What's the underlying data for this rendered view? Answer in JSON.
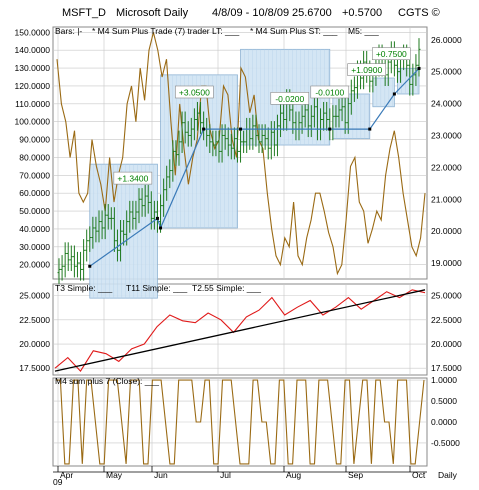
{
  "header": {
    "symbol": "MSFT_D",
    "name": "Microsoft Daily",
    "range": "4/8/09 - 10/8/09",
    "last": "25.6700",
    "change": "+0.5700",
    "copyright": "CGTS ©"
  },
  "colors": {
    "background": "#ffffff",
    "plot_bg": "#ffffff",
    "grid": "#c8c8c8",
    "candle": "#1f7a1f",
    "box_fill": "#cfe3f3",
    "box_stroke": "#8fb3d3",
    "trade_line": "#3a7ab8",
    "callout_text": "#008000",
    "olive": "#9a6a14",
    "red": "#e01a1a",
    "black": "#000000"
  },
  "chart_data": [
    {
      "type": "candlestick",
      "panel": "price",
      "legend": [
        "Bars: |-",
        "* M4 Sum Plus Trade (7) trader LT: ___",
        "* M4 Sum Plus ST: ___",
        "M5: ___"
      ],
      "ylim_left": [
        12,
        153
      ],
      "ylim_right": [
        18.5,
        26.4
      ],
      "left_ticks": [
        "150.0000",
        "140.0000",
        "130.0000",
        "120.0000",
        "110.0000",
        "100.0000",
        "90.0000",
        "80.0000",
        "70.0000",
        "60.0000",
        "50.0000",
        "40.0000",
        "30.0000",
        "20.0000"
      ],
      "right_ticks": [
        "26.0000",
        "25.0000",
        "24.0000",
        "23.0000",
        "22.0000",
        "21.0000",
        "20.0000",
        "19.0000"
      ],
      "close_prices": [
        18.8,
        18.9,
        19.3,
        19.1,
        19.2,
        18.9,
        19.0,
        18.8,
        19.4,
        19.7,
        19.8,
        20.1,
        20.0,
        20.3,
        20.1,
        20.5,
        20.4,
        20.4,
        19.7,
        19.4,
        20.0,
        19.9,
        20.3,
        20.6,
        20.4,
        20.6,
        21.0,
        20.8,
        21.1,
        20.9,
        20.4,
        20.6,
        20.3,
        20.8,
        21.3,
        21.7,
        21.9,
        22.5,
        22.4,
        22.8,
        23.4,
        23.1,
        23.0,
        23.2,
        23.5,
        23.7,
        23.4,
        23.2,
        23.0,
        22.8,
        22.7,
        22.8,
        22.5,
        23.0,
        22.9,
        22.7,
        22.6,
        22.9,
        22.5,
        22.8,
        22.8,
        23.2,
        22.9,
        23.3,
        23.0,
        22.8,
        23.0,
        22.9,
        22.6,
        23.1,
        22.7,
        23.3,
        23.7,
        23.5,
        24.1,
        23.8,
        23.4,
        23.2,
        23.4,
        23.6,
        23.8,
        23.3,
        23.6,
        23.9,
        23.2,
        23.5,
        23.7,
        23.5,
        23.2,
        23.6,
        23.6,
        23.8,
        23.9,
        23.4,
        24.0,
        24.4,
        24.5,
        25.0,
        24.8,
        25.3,
        25.0,
        24.7,
        24.9,
        25.2,
        25.5,
        25.2,
        24.9,
        25.3,
        25.6,
        25.2,
        25.0,
        25.4,
        25.5,
        25.2,
        24.6,
        24.9,
        25.2,
        25.7
      ],
      "trades": [
        {
          "label": "+1.3400",
          "entry": 18.9,
          "exit": 20.4
        },
        {
          "label": "+3.0500",
          "entry": 20.1,
          "exit": 23.2
        },
        {
          "label": "-0.0200",
          "entry": 23.2,
          "exit": 23.2
        },
        {
          "label": "-0.0100",
          "entry": 23.2,
          "exit": 23.2
        },
        {
          "label": "+1.0900",
          "entry": 23.2,
          "exit": 24.3
        },
        {
          "label": "+0.7500",
          "entry": 24.3,
          "exit": 25.1
        }
      ],
      "m5_oscillator_left_scale": [
        135,
        110,
        100,
        80,
        95,
        60,
        55,
        60,
        90,
        75,
        65,
        50,
        80,
        55,
        70,
        80,
        110,
        120,
        100,
        130,
        112,
        140,
        150,
        140,
        125,
        135,
        100,
        70,
        110,
        85,
        65,
        80,
        90,
        120,
        120,
        95,
        85,
        90,
        120,
        115,
        90,
        80,
        130,
        125,
        105,
        115,
        90,
        85,
        60,
        40,
        25,
        20,
        35,
        30,
        55,
        25,
        20,
        35,
        45,
        60,
        60,
        50,
        38,
        30,
        15,
        20,
        45,
        75,
        80,
        55,
        50,
        32,
        40,
        50,
        45,
        70,
        85,
        95,
        80,
        60,
        45,
        30,
        25,
        35,
        60
      ]
    },
    {
      "type": "line",
      "panel": "T3 / T11 / T2.55",
      "legend": [
        "T3 Simple: ___",
        "T11 Simple: ___",
        "T2.55 Simple: ___"
      ],
      "ylim": [
        16.8,
        26.2
      ],
      "ticks": [
        "25.0000",
        "22.5000",
        "20.0000",
        "17.5000"
      ],
      "series": [
        {
          "name": "T3 Simple",
          "values": [
            17.5,
            18.6,
            17.2,
            19.3,
            19.0,
            18.2,
            19.5,
            20.0,
            21.8,
            23.0,
            22.4,
            22.2,
            23.2,
            22.5,
            21.2,
            22.8,
            23.5,
            24.8,
            23.0,
            23.8,
            24.5,
            23.0,
            23.8,
            24.8,
            23.6,
            24.5,
            25.4,
            24.8,
            25.6,
            25.3
          ]
        },
        {
          "name": "T11 Simple",
          "values": [
            17.2,
            25.6
          ]
        }
      ]
    },
    {
      "type": "line",
      "panel": "M4 sum plus 7 (Close)",
      "legend": [
        "M4 sum plus 7 (Close): ___"
      ],
      "ylim": [
        -1.05,
        1.05
      ],
      "ticks": [
        "1.0000",
        "0.5000",
        "0.0000",
        "-0.5000"
      ],
      "values": [
        1,
        1,
        -1,
        -1,
        1,
        1,
        -1,
        1,
        1,
        0,
        -1,
        -1,
        1,
        1,
        1,
        0,
        -1,
        1,
        1,
        1,
        -1,
        -1,
        1,
        1,
        1,
        0,
        -1,
        -1,
        1,
        1,
        1,
        1,
        0,
        0,
        1,
        1,
        -1,
        -1,
        1,
        1,
        1,
        0,
        -1,
        -1,
        -1,
        1,
        1,
        0,
        0,
        -1,
        -1,
        1,
        1,
        -1,
        -1,
        1,
        1,
        1,
        -1,
        -1,
        1,
        1,
        1,
        0,
        -1,
        -1,
        1,
        1,
        -1,
        0,
        1,
        1,
        -1,
        1,
        1,
        0,
        0,
        -1,
        1,
        1,
        1,
        -1,
        -1,
        0,
        1
      ]
    }
  ],
  "axis": {
    "months": [
      "Apr",
      "May",
      "Jun",
      "Jul",
      "Aug",
      "Sep",
      "Oct"
    ],
    "year": "09",
    "period": "Daily"
  }
}
